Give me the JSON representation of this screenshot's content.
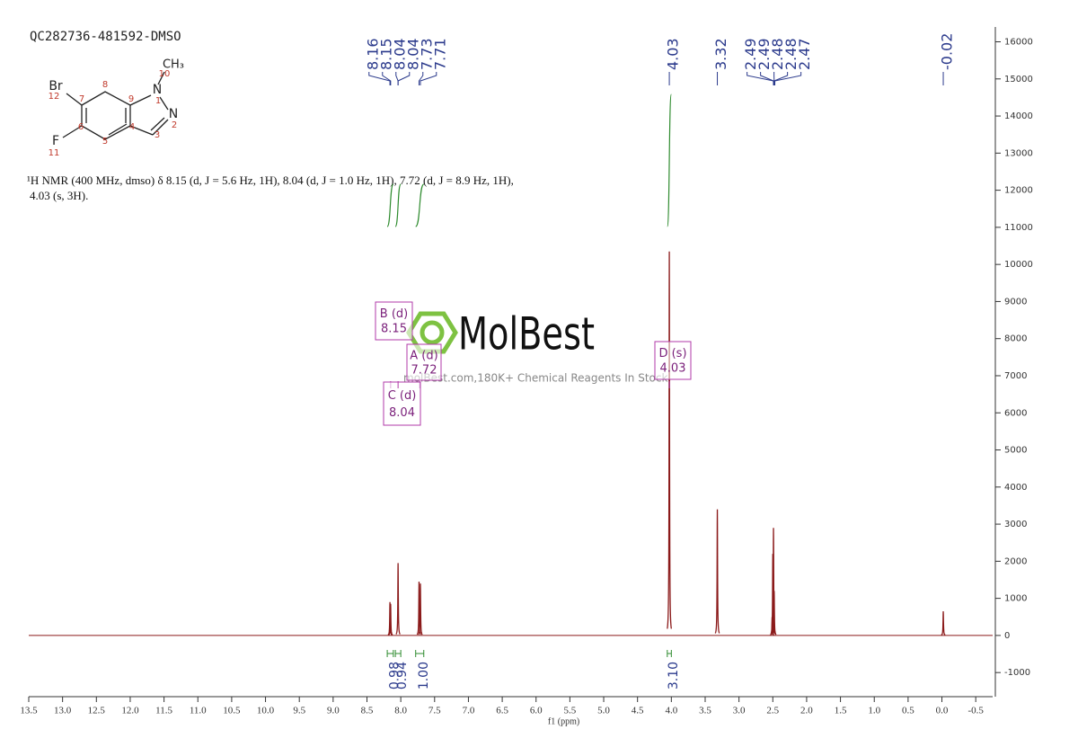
{
  "title": "QC282736-481592-DMSO",
  "description": [
    "¹H NMR (400 MHz, dmso) δ 8.15 (d, J = 5.6 Hz, 1H), 8.04 (d, J = 1.0 Hz, 1H), 7.72 (d, J = 8.9 Hz, 1H),",
    "4.03 (s, 3H)."
  ],
  "molecule": {
    "atoms": [
      "Br",
      "12",
      "7",
      "8",
      "9",
      "N",
      "1",
      "10",
      "CH₃",
      "N",
      "2",
      "3",
      "4",
      "5",
      "6",
      "F",
      "11"
    ]
  },
  "watermark": {
    "brand": "MolBest",
    "tagline": "molBest.com,180K+ Chemical Reagents In Stock."
  },
  "chart_data": {
    "type": "nmr",
    "xlabel": "f1 (ppm)",
    "xlim": [
      13.5,
      -0.75
    ],
    "xticks": [
      13.5,
      {
        "value": 13,
        "label": "13.0"
      },
      12.5,
      {
        "value": 12,
        "label": "12.0"
      },
      11.5,
      {
        "value": 11,
        "label": "11.0"
      },
      10.5,
      {
        "value": 10,
        "label": "10.0"
      },
      9.5,
      {
        "value": 9,
        "label": "9.0"
      },
      8.5,
      {
        "value": 8,
        "label": "8.0"
      },
      7.5,
      {
        "value": 7,
        "label": "7.0"
      },
      6.5,
      {
        "value": 6,
        "label": "6.0"
      },
      5.5,
      {
        "value": 5,
        "label": "5.0"
      },
      4.5,
      {
        "value": 4,
        "label": "4.0"
      },
      3.5,
      {
        "value": 3,
        "label": "3.0"
      },
      2.5,
      {
        "value": 2,
        "label": "2.0"
      },
      1.5,
      {
        "value": 1,
        "label": "1.0"
      },
      0.5,
      {
        "value": 0,
        "label": "0.0"
      },
      -0.5
    ],
    "ylim": [
      -1650,
      16400
    ],
    "yticks": [
      -1000,
      0,
      1000,
      2000,
      3000,
      4000,
      5000,
      6000,
      7000,
      8000,
      9000,
      10000,
      11000,
      12000,
      13000,
      14000,
      15000,
      16000
    ],
    "color": "#8b1a1a",
    "peaks": {
      "x": [
        8.16,
        8.15,
        8.04,
        7.73,
        7.71,
        4.03,
        3.32,
        2.51,
        2.5,
        2.49,
        2.48,
        -0.02
      ],
      "values": [
        900,
        850,
        1950,
        1450,
        1400,
        10350,
        3400,
        500,
        2200,
        2900,
        1200,
        650
      ]
    },
    "peak_labels": [
      8.16,
      8.15,
      8.04,
      8.04,
      7.73,
      7.71,
      4.03,
      3.32,
      2.49,
      2.49,
      2.48,
      2.48,
      2.47,
      -0.02
    ],
    "label_color": "#2b3a8c",
    "integrals": {
      "ranges": [
        [
          8.2,
          8.11
        ],
        [
          8.08,
          8.0
        ],
        [
          7.78,
          7.66
        ],
        [
          4.06,
          4.0
        ]
      ],
      "values": [
        0.98,
        0.94,
        1,
        3.1
      ],
      "value_labels": [
        "0.98",
        "0.94",
        "1.00",
        "3.10"
      ],
      "color": "#2e8b2e"
    },
    "multiplets": [
      {
        "label": "B (d)",
        "shift": 8.15
      },
      {
        "label": "A (d)",
        "shift": 7.72
      },
      {
        "label": "C (d)",
        "shift": 8.04
      },
      {
        "label": "D (s)",
        "shift": 4.03
      }
    ],
    "multiplet_color": "#b03aa8"
  }
}
